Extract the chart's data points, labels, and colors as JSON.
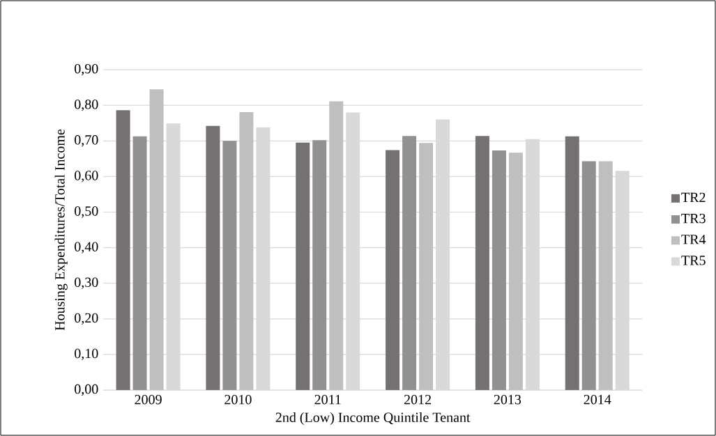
{
  "chart_data": {
    "type": "bar",
    "xlabel": "2nd (Low) Income Quintile Tenant",
    "ylabel": "Housing Expenditures/Total Income",
    "categories": [
      "2009",
      "2010",
      "2011",
      "2012",
      "2013",
      "2014"
    ],
    "series": [
      {
        "name": "TR2",
        "color": "#767171",
        "values": [
          0.786,
          0.742,
          0.695,
          0.674,
          0.714,
          0.713
        ]
      },
      {
        "name": "TR3",
        "color": "#919191",
        "values": [
          0.713,
          0.7,
          0.702,
          0.714,
          0.673,
          0.643
        ]
      },
      {
        "name": "TR4",
        "color": "#bfbfbf",
        "values": [
          0.845,
          0.781,
          0.811,
          0.694,
          0.667,
          0.643
        ]
      },
      {
        "name": "TR5",
        "color": "#d9d9d9",
        "values": [
          0.749,
          0.738,
          0.78,
          0.76,
          0.705,
          0.616
        ]
      }
    ],
    "ylim": [
      0,
      0.9
    ],
    "yticks": [
      {
        "value": 0,
        "label": "0,00"
      },
      {
        "value": 0.1,
        "label": "0,10"
      },
      {
        "value": 0.2,
        "label": "0,20"
      },
      {
        "value": 0.3,
        "label": "0,30"
      },
      {
        "value": 0.4,
        "label": "0,40"
      },
      {
        "value": 0.5,
        "label": "0,50"
      },
      {
        "value": 0.6,
        "label": "0,60"
      },
      {
        "value": 0.7,
        "label": "0,70"
      },
      {
        "value": 0.8,
        "label": "0,80"
      },
      {
        "value": 0.9,
        "label": "0,90"
      }
    ],
    "grid": "y",
    "legend": "right"
  }
}
